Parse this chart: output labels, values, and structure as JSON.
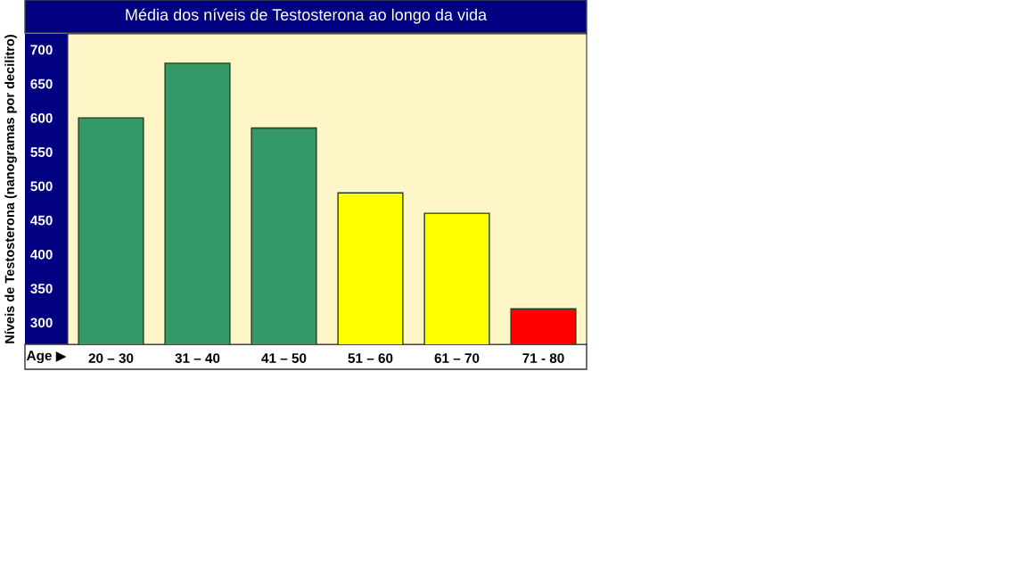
{
  "chart_data": {
    "type": "bar",
    "title": "Média dos níveis de Testosterona ao longo da vida",
    "xlabel": "Age ▶",
    "ylabel": "Níveis de Testosterona (nanogramas por decilitro)",
    "categories": [
      "20 – 30",
      "31 – 40",
      "41 – 50",
      "51 – 60",
      "61 – 70",
      "71 - 80"
    ],
    "values": [
      600,
      680,
      585,
      490,
      460,
      320
    ],
    "colors": [
      "#339966",
      "#339966",
      "#339966",
      "#ffff00",
      "#ffff00",
      "#ff0000"
    ],
    "ylim": [
      268,
      723
    ],
    "yticks": [
      300,
      350,
      400,
      450,
      500,
      550,
      600,
      650,
      700
    ],
    "grid": false,
    "legend": false
  }
}
